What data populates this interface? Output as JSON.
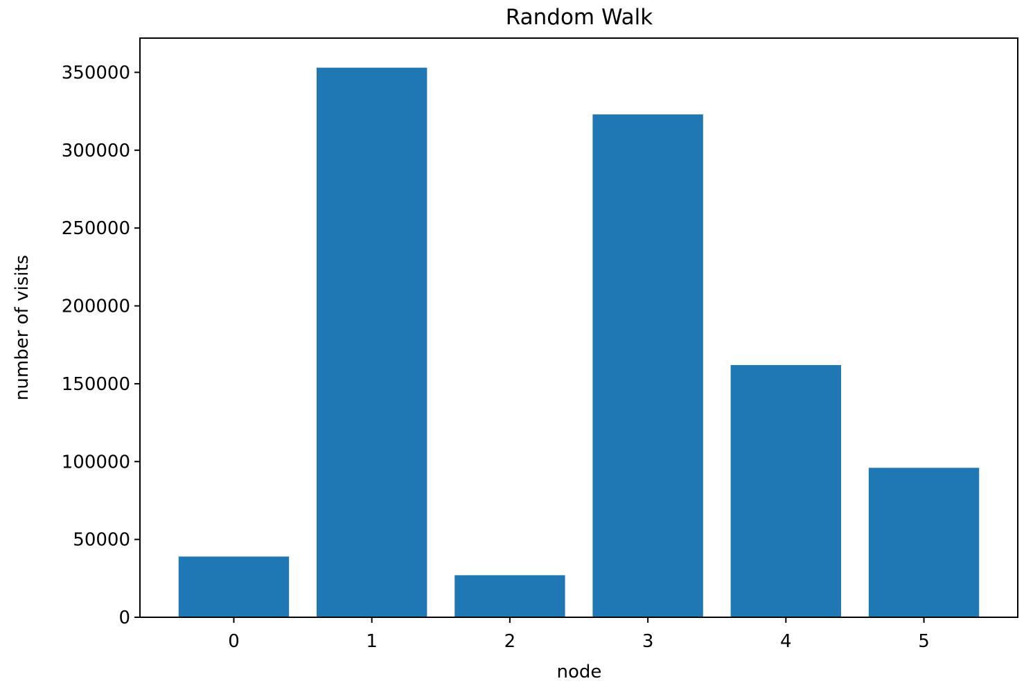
{
  "chart_data": {
    "type": "bar",
    "title": "Random Walk",
    "xlabel": "node",
    "ylabel": "number of visits",
    "categories": [
      "0",
      "1",
      "2",
      "3",
      "4",
      "5"
    ],
    "values": [
      39000,
      353000,
      27000,
      323000,
      162000,
      96000
    ],
    "ylim": [
      0,
      372000
    ],
    "yticks": [
      0,
      50000,
      100000,
      150000,
      200000,
      250000,
      300000,
      350000
    ],
    "ytick_labels": [
      "0",
      "50000",
      "100000",
      "150000",
      "200000",
      "250000",
      "300000",
      "350000"
    ],
    "grid": false,
    "legend": "none",
    "bar_color": "#1f77b4"
  }
}
